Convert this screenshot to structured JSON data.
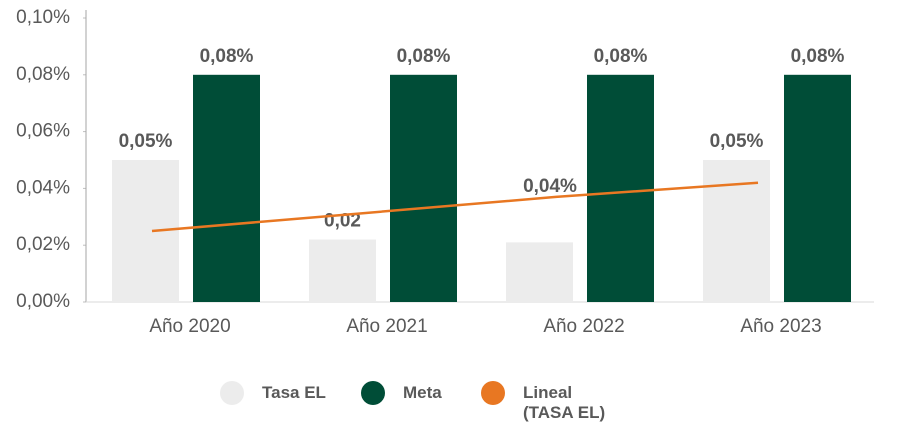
{
  "chart_data": {
    "type": "bar",
    "categories": [
      "Año 2020",
      "Año 2021",
      "Año 2022",
      "Año 2023"
    ],
    "series": [
      {
        "name": "Tasa EL",
        "color": "#ececec",
        "values": [
          0.05,
          0.022,
          0.021,
          0.05
        ],
        "value_labels": [
          "0,05%",
          "0,02",
          null,
          "0,05%"
        ]
      },
      {
        "name": "Meta",
        "color": "#004d37",
        "values": [
          0.08,
          0.08,
          0.08,
          0.08
        ],
        "value_labels": [
          "0,08%",
          "0,08%",
          "0,08%",
          "0,08%"
        ]
      },
      {
        "name": "Lineal (TASA EL)",
        "type": "line",
        "color": "#e87722",
        "values": [
          0.025,
          0.031,
          0.037,
          0.042
        ],
        "value_labels": [
          null,
          null,
          "0,04%",
          null
        ]
      }
    ],
    "ylim": [
      0,
      0.1
    ],
    "yticks": [
      {
        "value": 0,
        "label": "0,00%"
      },
      {
        "value": 0.02,
        "label": "0,02%"
      },
      {
        "value": 0.04,
        "label": "0,04%"
      },
      {
        "value": 0.06,
        "label": "0,06%"
      },
      {
        "value": 0.08,
        "label": "0,08%"
      },
      {
        "value": 0.1,
        "label": "0,10%"
      }
    ],
    "legend": "bottom"
  }
}
